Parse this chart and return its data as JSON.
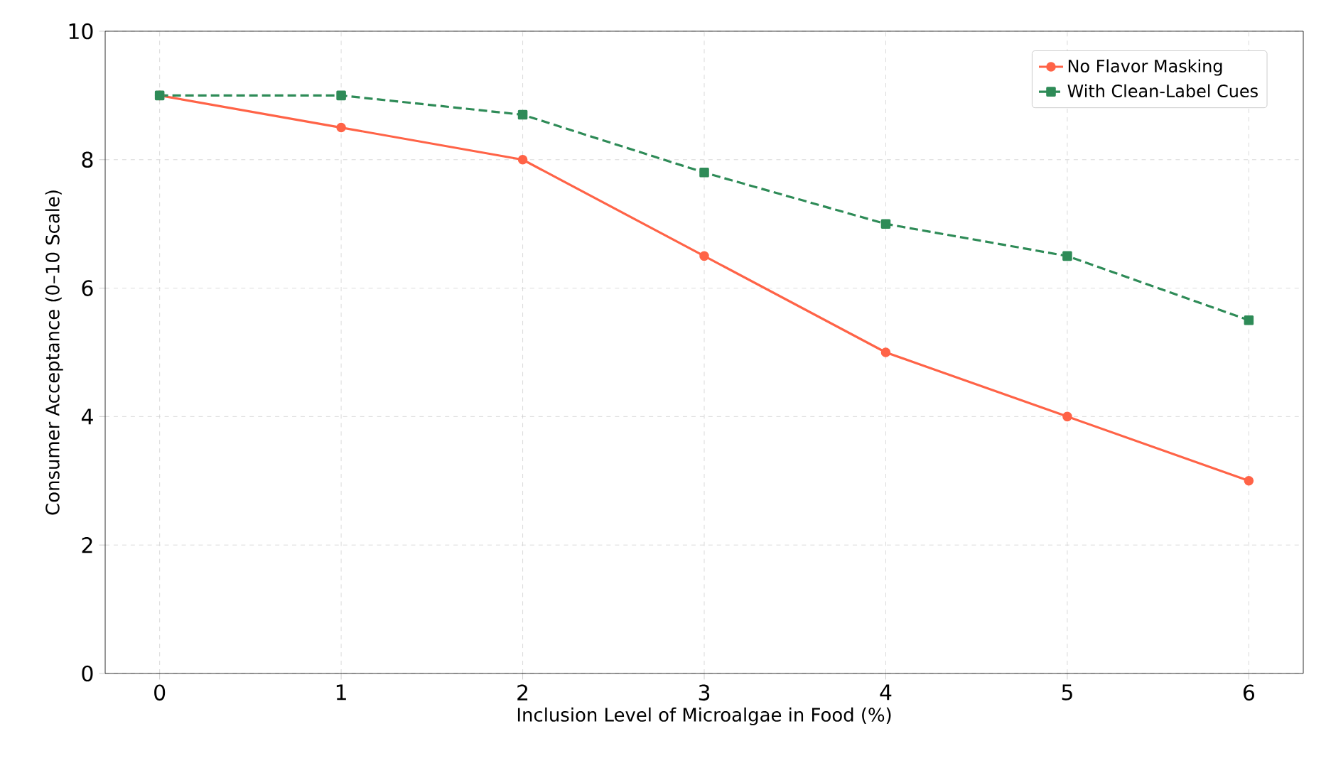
{
  "chart_data": {
    "type": "line",
    "xlabel": "Inclusion Level of Microalgae in Food (%)",
    "ylabel": "Consumer Acceptance (0–10 Scale)",
    "x": [
      0,
      1,
      2,
      3,
      4,
      5,
      6
    ],
    "series": [
      {
        "name": "No Flavor Masking",
        "color": "#ff6347",
        "values": [
          9,
          8.5,
          8,
          6.5,
          5,
          4,
          3
        ],
        "marker": "circle",
        "line_style": "solid"
      },
      {
        "name": "With Clean-Label Cues",
        "color": "#2e8b57",
        "values": [
          9,
          9,
          8.7,
          7.8,
          7,
          6.5,
          5.5
        ],
        "marker": "square",
        "line_style": "dashed"
      }
    ],
    "xlim": [
      -0.3,
      6.3
    ],
    "ylim": [
      0,
      10
    ],
    "xticks": [
      0,
      1,
      2,
      3,
      4,
      5,
      6
    ],
    "yticks": [
      0,
      2,
      4,
      6,
      8,
      10
    ],
    "grid": true,
    "legend": "top right"
  }
}
